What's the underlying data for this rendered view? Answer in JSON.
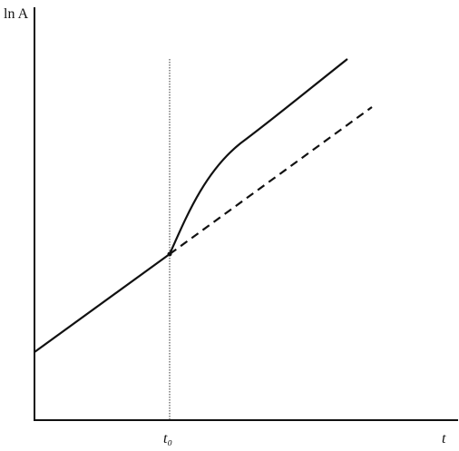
{
  "axes": {
    "y_label": "ln A",
    "x_label": "t",
    "marker_label": "t₀"
  }
}
